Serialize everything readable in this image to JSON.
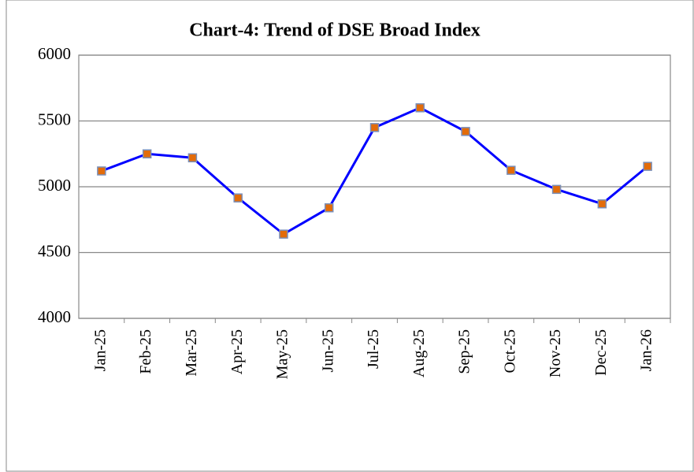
{
  "chart_data": {
    "type": "line",
    "title": "Chart-4: Trend of DSE Broad Index",
    "categories": [
      "Jan-25",
      "Feb-25",
      "Mar-25",
      "Apr-25",
      "May-25",
      "Jun-25",
      "Jul-25",
      "Aug-25",
      "Sep-25",
      "Oct-25",
      "Nov-25",
      "Dec-25",
      "Jan-26"
    ],
    "series": [
      {
        "name": "DSE Broad Index",
        "color": "#0000ff",
        "marker_color": "#e36c0a",
        "values": [
          5120,
          5250,
          5220,
          4915,
          4640,
          4840,
          5450,
          5600,
          5420,
          5125,
          4980,
          4870,
          5155
        ]
      }
    ],
    "ylim": [
      4000,
      6000
    ],
    "yticks": [
      4000,
      4500,
      5000,
      5500,
      6000
    ],
    "grid": true
  }
}
